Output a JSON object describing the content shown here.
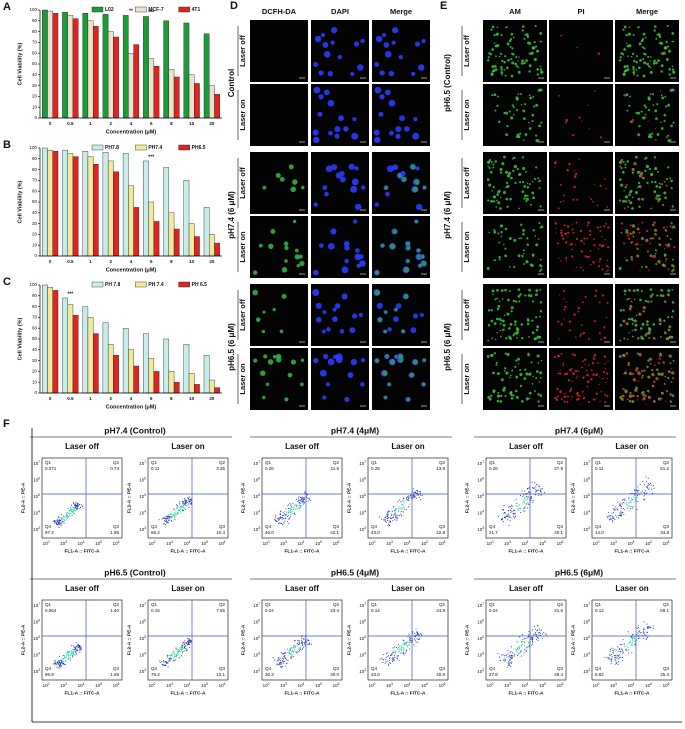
{
  "chart_data": [
    {
      "type": "bar",
      "panel": "A",
      "y_label": "Cell Viability (%)",
      "x_label": "Concentration (μM)",
      "categories": [
        "0",
        "0.5",
        "1",
        "2",
        "4",
        "6",
        "8",
        "10",
        "20"
      ],
      "series": [
        {
          "name": "L02",
          "color": "#1d9a3a",
          "values": [
            100,
            98,
            97,
            96,
            95,
            94,
            90,
            88,
            78
          ]
        },
        {
          "name": "MCF-7",
          "color": "#ece2cc",
          "values": [
            99,
            95,
            90,
            80,
            60,
            55,
            45,
            40,
            30
          ]
        },
        {
          "name": "4T1",
          "color": "#e02424",
          "values": [
            97,
            92,
            85,
            75,
            68,
            48,
            38,
            32,
            22
          ]
        }
      ],
      "ylim": [
        0,
        100
      ],
      "yticks": [
        0,
        10,
        20,
        30,
        40,
        50,
        60,
        70,
        80,
        90,
        100
      ],
      "legend": "top",
      "annotations": [
        {
          "text": "**",
          "category": "4"
        },
        {
          "text": "***",
          "category": "6"
        }
      ]
    },
    {
      "type": "bar",
      "panel": "B",
      "y_label": "Cell Viability (%)",
      "x_label": "Concentration (μM)",
      "categories": [
        "0",
        "0.5",
        "1",
        "2",
        "4",
        "6",
        "8",
        "10",
        "20"
      ],
      "series": [
        {
          "name": "PH7.8",
          "color": "#c8ece8",
          "values": [
            100,
            98,
            97,
            96,
            95,
            88,
            82,
            70,
            45
          ]
        },
        {
          "name": "PH7.4",
          "color": "#f1ea9c",
          "values": [
            98,
            95,
            92,
            88,
            65,
            50,
            40,
            30,
            20
          ]
        },
        {
          "name": "PH6.5",
          "color": "#e02424",
          "values": [
            97,
            92,
            85,
            78,
            45,
            32,
            25,
            18,
            12
          ]
        }
      ],
      "ylim": [
        0,
        100
      ],
      "yticks": [
        0,
        10,
        20,
        30,
        40,
        50,
        60,
        70,
        80,
        90,
        100
      ],
      "legend": "top",
      "annotations": [
        {
          "text": "***",
          "category": "6"
        }
      ]
    },
    {
      "type": "bar",
      "panel": "C",
      "y_label": "Cell Viability (%)",
      "x_label": "Concentration (μM)",
      "categories": [
        "0",
        "0.5",
        "1",
        "2",
        "4",
        "6",
        "8",
        "10",
        "20"
      ],
      "series": [
        {
          "name": "PH 7.8",
          "color": "#c8ece8",
          "values": [
            100,
            88,
            80,
            65,
            60,
            55,
            50,
            45,
            35
          ]
        },
        {
          "name": "PH 7.4",
          "color": "#f1ea9c",
          "values": [
            98,
            82,
            70,
            45,
            40,
            32,
            20,
            18,
            12
          ]
        },
        {
          "name": "PH 6.5",
          "color": "#e02424",
          "values": [
            95,
            72,
            55,
            35,
            25,
            20,
            10,
            8,
            5
          ]
        }
      ],
      "ylim": [
        0,
        100
      ],
      "yticks": [
        0,
        10,
        20,
        30,
        40,
        50,
        60,
        70,
        80,
        90,
        100
      ],
      "legend": "top",
      "annotations": [
        {
          "text": "***",
          "category": "0.5"
        }
      ]
    }
  ],
  "imaging": [
    {
      "panel": "D",
      "columns": [
        "DCFH-DA",
        "DAPI",
        "Merge"
      ],
      "groups": [
        {
          "label": "Control",
          "rows": [
            "Laser off",
            "Laser on"
          ]
        },
        {
          "label": "pH7.4 (6 μM)",
          "rows": [
            "Laser off",
            "Laser on"
          ]
        },
        {
          "label": "pH6.5 (6 μM)",
          "rows": [
            "Laser off",
            "Laser on"
          ]
        }
      ]
    },
    {
      "panel": "E",
      "columns": [
        "AM",
        "PI",
        "Merge"
      ],
      "groups": [
        {
          "label": "pH6.5 (Control)",
          "rows": [
            "Laser off",
            "Laser on"
          ]
        },
        {
          "label": "pH7.4 (6 μM)",
          "rows": [
            "Laser off",
            "Laser on"
          ]
        },
        {
          "label": "pH6.5 (6 μM)",
          "rows": [
            "Laser off",
            "Laser on"
          ]
        }
      ]
    }
  ],
  "flow": {
    "panel": "F",
    "x_axis_label": "FL1-A :: FITC-A",
    "y_axis_label": "FL2-A :: PE-A",
    "tick_base": "10",
    "x_tick_exponents": [
      "0",
      "3",
      "4",
      "5",
      "6"
    ],
    "y_tick_exponents": [
      "7",
      "6",
      "5",
      "4",
      "3"
    ],
    "quadrant_names": [
      "Q1",
      "Q2",
      "Q3",
      "Q4"
    ],
    "rows": [
      {
        "groups": [
          {
            "title": "pH7.4 (Control)",
            "plots": [
              {
                "label": "Laser off",
                "quadrants": [
                  "0.071",
                  "0.74",
                  "1.86",
                  "97.3"
                ]
              },
              {
                "label": "Laser on",
                "quadrants": [
                  "0.11",
                  "3.35",
                  "10.4",
                  "86.2"
                ]
              }
            ]
          },
          {
            "title": "pH7.4 (4μM)",
            "plots": [
              {
                "label": "Laser off",
                "quadrants": [
                  "0.26",
                  "11.6",
                  "42.1",
                  "46.0"
                ]
              },
              {
                "label": "Laser on",
                "quadrants": [
                  "0.25",
                  "13.9",
                  "42.8",
                  "43.0"
                ]
              }
            ]
          },
          {
            "title": "pH7.4 (6μM)",
            "plots": [
              {
                "label": "Laser off",
                "quadrants": [
                  "0.26",
                  "27.9",
                  "40.1",
                  "21.7"
                ]
              },
              {
                "label": "Laser on",
                "quadrants": [
                  "0.11",
                  "51.2",
                  "34.8",
                  "14.0"
                ]
              }
            ]
          }
        ]
      },
      {
        "groups": [
          {
            "title": "pH6.5 (Control)",
            "plots": [
              {
                "label": "Laser off",
                "quadrants": [
                  "0.064",
                  "1.40",
                  "1.65",
                  "96.9"
                ]
              },
              {
                "label": "Laser on",
                "quadrants": [
                  "0.15",
                  "7.55",
                  "12.1",
                  "79.2"
                ]
              }
            ]
          },
          {
            "title": "pH6.5 (4μM)",
            "plots": [
              {
                "label": "Laser off",
                "quadrants": [
                  "0.24",
                  "23.4",
                  "40.0",
                  "36.3"
                ]
              },
              {
                "label": "Laser on",
                "quadrants": [
                  "0.14",
                  "24.9",
                  "40.9",
                  "33.0"
                ]
              }
            ]
          },
          {
            "title": "pH6.5 (6μM)",
            "plots": [
              {
                "label": "Laser off",
                "quadrants": [
                  "0.24",
                  "21.6",
                  "49.4",
                  "27.8"
                ]
              },
              {
                "label": "Laser on",
                "quadrants": [
                  "0.12",
                  "69.1",
                  "25.3",
                  "5.62"
                ]
              }
            ]
          }
        ]
      }
    ]
  }
}
